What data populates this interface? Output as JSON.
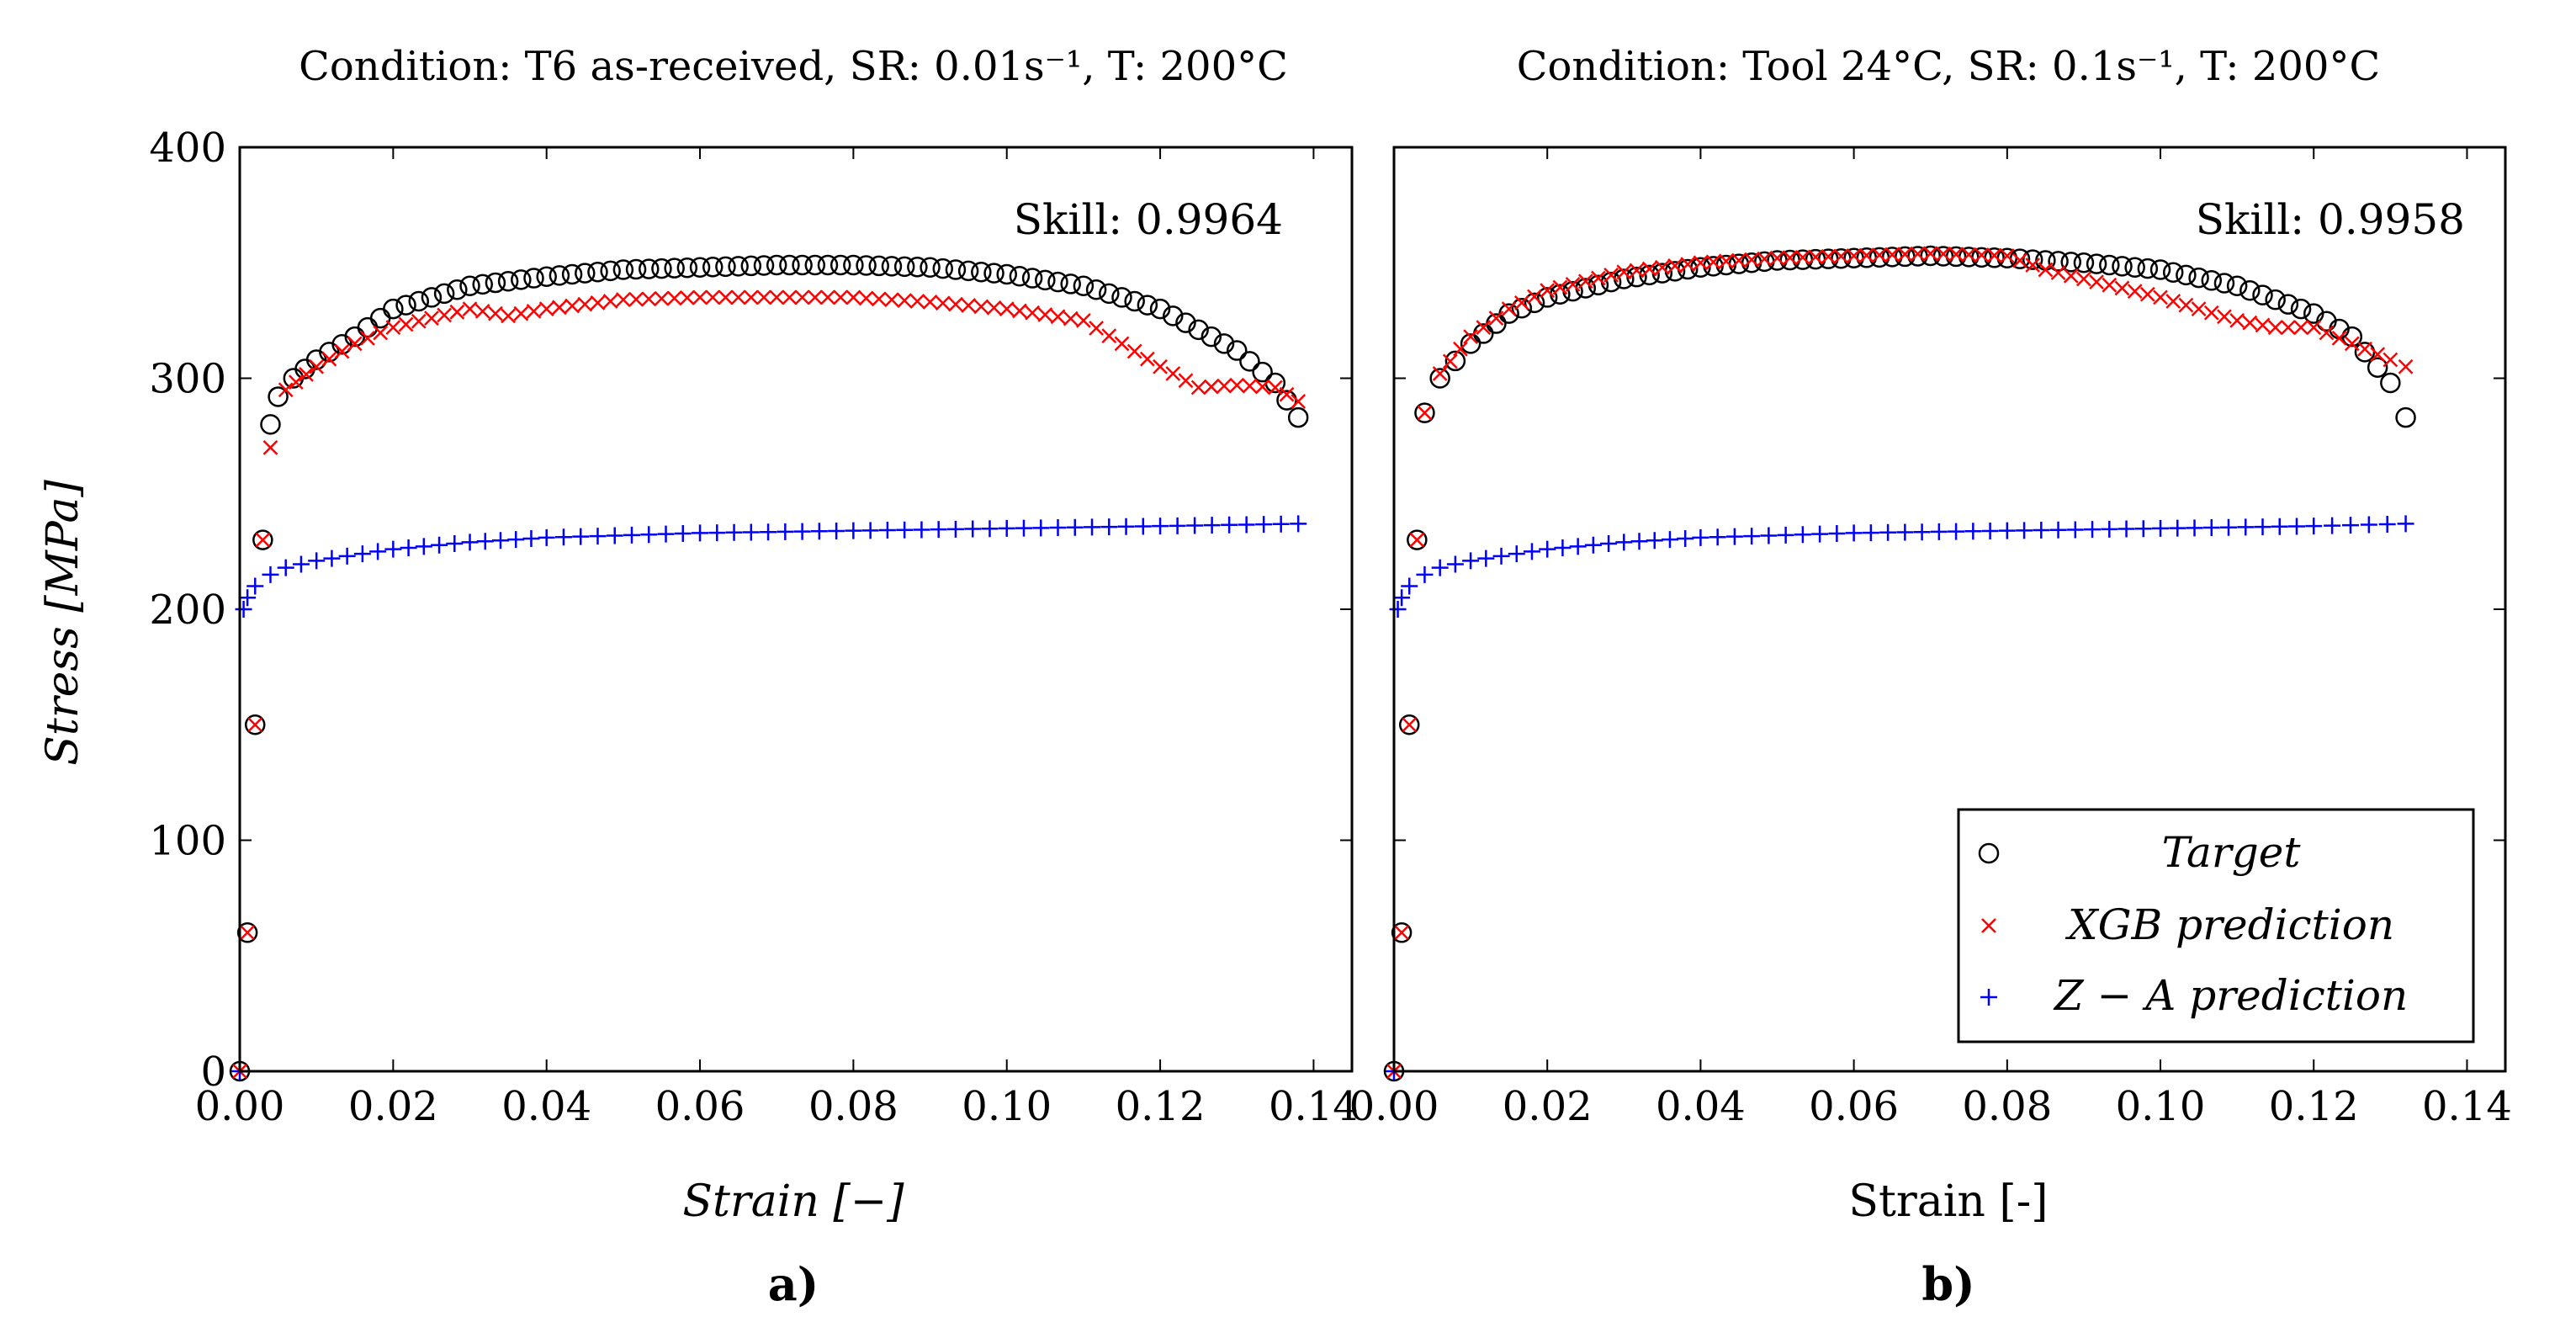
{
  "figure": {
    "panel_labels": [
      "a)",
      "b)"
    ],
    "legend": {
      "entries": [
        {
          "name": "Target",
          "marker": "circle",
          "color": "#000000"
        },
        {
          "name": "XGB prediction",
          "marker": "x",
          "color": "#ff0000"
        },
        {
          "name": "Z − A prediction",
          "marker": "plus",
          "color": "#0000ff"
        }
      ]
    }
  },
  "chart_data": [
    {
      "type": "scatter",
      "title": "Condition: T6 as-received, SR: 0.01s⁻¹, T: 200°C",
      "annotation": "Skill: 0.9964",
      "xlabel": "Strain [−]",
      "ylabel": "Stress [MPa]",
      "xlim": [
        0,
        0.145
      ],
      "ylim": [
        0,
        400
      ],
      "xticks": [
        "0.00",
        "0.02",
        "0.04",
        "0.06",
        "0.08",
        "0.10",
        "0.12",
        "0.14"
      ],
      "yticks": [
        "0",
        "100",
        "200",
        "300",
        "400"
      ],
      "series": [
        {
          "name": "Target",
          "x": [
            0.0,
            0.001,
            0.002,
            0.003,
            0.004,
            0.005,
            0.007,
            0.01,
            0.015,
            0.02,
            0.03,
            0.04,
            0.05,
            0.06,
            0.07,
            0.08,
            0.09,
            0.1,
            0.11,
            0.12,
            0.13,
            0.135,
            0.138
          ],
          "y": [
            0,
            60,
            150,
            230,
            280,
            292,
            300,
            308,
            318,
            330,
            340,
            344,
            347,
            348,
            349,
            349,
            348,
            345,
            340,
            330,
            312,
            298,
            283
          ]
        },
        {
          "name": "XGB prediction",
          "x": [
            0.0,
            0.001,
            0.002,
            0.003,
            0.004,
            0.006,
            0.01,
            0.015,
            0.02,
            0.03,
            0.035,
            0.04,
            0.05,
            0.06,
            0.07,
            0.08,
            0.09,
            0.1,
            0.11,
            0.115,
            0.12,
            0.125,
            0.13,
            0.135,
            0.138
          ],
          "y": [
            0,
            60,
            150,
            230,
            270,
            295,
            305,
            315,
            322,
            330,
            327,
            330,
            334,
            335,
            335,
            335,
            333,
            330,
            325,
            315,
            305,
            296,
            297,
            296,
            290
          ]
        },
        {
          "name": "Z − A prediction",
          "x": [
            0.0,
            0.0005,
            0.001,
            0.002,
            0.004,
            0.006,
            0.01,
            0.02,
            0.03,
            0.04,
            0.06,
            0.08,
            0.1,
            0.12,
            0.138
          ],
          "y": [
            0,
            200,
            205,
            210,
            215,
            218,
            221,
            226,
            229,
            231,
            233,
            234,
            235,
            236,
            237
          ]
        }
      ]
    },
    {
      "type": "scatter",
      "title": "Condition: Tool 24°C, SR: 0.1s⁻¹, T: 200°C",
      "annotation": "Skill: 0.9958",
      "xlabel": "Strain [-]",
      "ylabel": "",
      "xlim": [
        0,
        0.145
      ],
      "ylim": [
        0,
        400
      ],
      "xticks": [
        "0.00",
        "0.02",
        "0.04",
        "0.06",
        "0.08",
        "0.10",
        "0.12",
        "0.14"
      ],
      "yticks": [],
      "series": [
        {
          "name": "Target",
          "x": [
            0.0,
            0.001,
            0.002,
            0.003,
            0.004,
            0.006,
            0.01,
            0.015,
            0.02,
            0.03,
            0.04,
            0.05,
            0.06,
            0.07,
            0.08,
            0.09,
            0.1,
            0.11,
            0.12,
            0.125,
            0.13,
            0.132
          ],
          "y": [
            0,
            60,
            150,
            230,
            285,
            300,
            315,
            328,
            335,
            343,
            348,
            351,
            352,
            353,
            352,
            350,
            347,
            340,
            328,
            318,
            298,
            283
          ]
        },
        {
          "name": "XGB prediction",
          "x": [
            0.0,
            0.001,
            0.002,
            0.003,
            0.004,
            0.006,
            0.01,
            0.015,
            0.02,
            0.03,
            0.04,
            0.05,
            0.06,
            0.07,
            0.08,
            0.085,
            0.09,
            0.1,
            0.11,
            0.115,
            0.12,
            0.125,
            0.13,
            0.132
          ],
          "y": [
            0,
            60,
            150,
            230,
            285,
            302,
            318,
            330,
            338,
            346,
            350,
            352,
            353,
            354,
            353,
            347,
            343,
            335,
            325,
            322,
            322,
            315,
            308,
            305
          ]
        },
        {
          "name": "Z − A prediction",
          "x": [
            0.0,
            0.0005,
            0.001,
            0.002,
            0.004,
            0.006,
            0.01,
            0.02,
            0.03,
            0.04,
            0.06,
            0.08,
            0.1,
            0.12,
            0.132
          ],
          "y": [
            0,
            200,
            205,
            210,
            215,
            218,
            221,
            226,
            229,
            231,
            233,
            234,
            235,
            236,
            237
          ]
        }
      ]
    }
  ]
}
